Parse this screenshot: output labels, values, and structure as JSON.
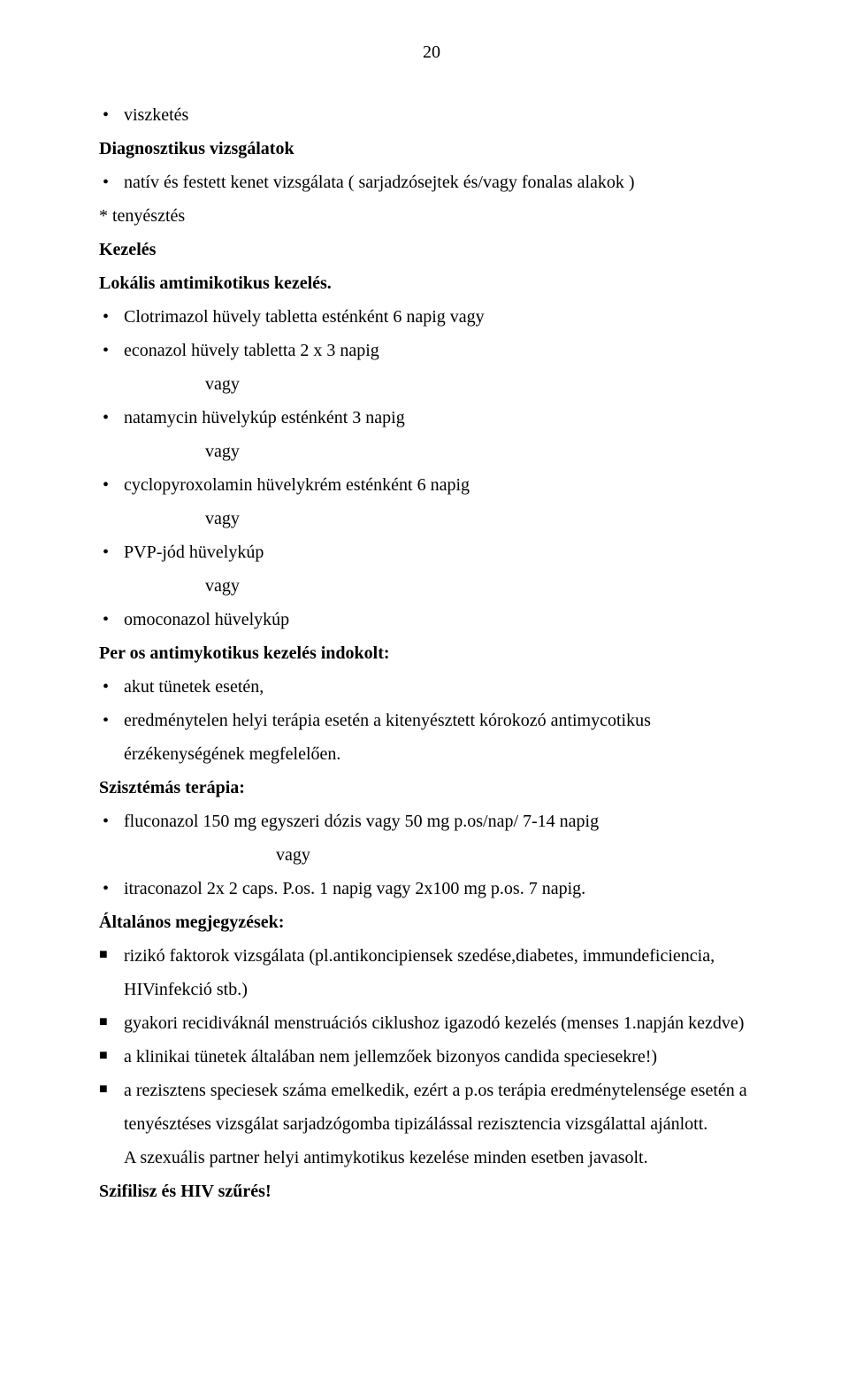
{
  "page_number": "20",
  "bullets_top": [
    "viszketés"
  ],
  "h_diag": "Diagnosztikus vizsgálatok",
  "bullets_diag": [
    "natív és festett kenet vizsgálata ( sarjadzósejtek és/vagy fonalas alakok )"
  ],
  "star_line": "*   tenyésztés",
  "h_kezeles": "Kezelés",
  "h_lokalis": "Lokális amtimikotikus kezelés.",
  "treat": {
    "t1": "Clotrimazol hüvely tabletta esténként 6 napig  vagy",
    "t2": "econazol hüvely tabletta 2 x 3 napig",
    "t3": "natamycin hüvelykúp esténként 3 napig",
    "t4": "cyclopyroxolamin hüvelykrém esténként 6 napig",
    "t5": "PVP-jód hüvelykúp",
    "t6": "omoconazol hüvelykúp",
    "vagy": "vagy"
  },
  "h_peros": "Per os antimykotikus kezelés indokolt:",
  "peros_items": [
    "akut tünetek esetén,",
    " eredménytelen helyi terápia esetén a kitenyésztett kórokozó antimycotikus érzékenységének megfelelően."
  ],
  "h_szisz": "Szisztémás terápia:",
  "szisz": {
    "f1": "fluconazol 150 mg  egyszeri dózis vagy 50 mg p.os/nap/ 7-14 napig",
    "vagy": "vagy",
    "f2": "itraconazol 2x 2 caps. P.os. 1 napig vagy  2x100 mg p.os.  7 napig."
  },
  "h_alt": "Általános megjegyzések:",
  "alt_items": [
    "rizikó faktorok vizsgálata (pl.antikoncipiensek szedése,diabetes, immundeficiencia, HIVinfekció stb.)",
    "gyakori recidiváknál menstruációs ciklushoz igazodó   kezelés (menses 1.napján kezdve)",
    "a klinikai tünetek általában nem jellemzőek  bizonyos candida speciesekre!)",
    "a rezisztens speciesek száma emelkedik, ezért  a p.os terápia eredménytelensége esetén a tenyésztéses vizsgálat sarjadzógomba tipizálással rezisztencia vizsgálattal  ajánlott."
  ],
  "partner_line": "A szexuális partner helyi antimykotikus kezelése minden esetben javasolt.",
  "h_szif": "Szifilisz és HIV szűrés!",
  "colors": {
    "text": "#000000",
    "background": "#ffffff"
  }
}
